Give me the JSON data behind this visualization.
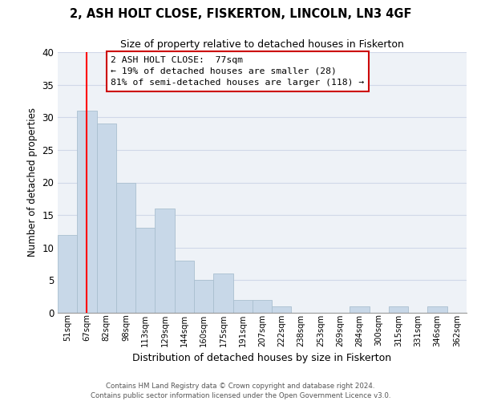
{
  "title": "2, ASH HOLT CLOSE, FISKERTON, LINCOLN, LN3 4GF",
  "subtitle": "Size of property relative to detached houses in Fiskerton",
  "xlabel": "Distribution of detached houses by size in Fiskerton",
  "ylabel": "Number of detached properties",
  "bar_labels": [
    "51sqm",
    "67sqm",
    "82sqm",
    "98sqm",
    "113sqm",
    "129sqm",
    "144sqm",
    "160sqm",
    "175sqm",
    "191sqm",
    "207sqm",
    "222sqm",
    "238sqm",
    "253sqm",
    "269sqm",
    "284sqm",
    "300sqm",
    "315sqm",
    "331sqm",
    "346sqm",
    "362sqm"
  ],
  "bar_heights": [
    12,
    31,
    29,
    20,
    13,
    16,
    8,
    5,
    6,
    2,
    2,
    1,
    0,
    0,
    0,
    1,
    0,
    1,
    0,
    1,
    0
  ],
  "bar_color": "#c8d8e8",
  "bar_edge_color": "#aabfcf",
  "grid_color": "#d0d8e8",
  "background_color": "#eef2f7",
  "red_line_x": 1.5,
  "ylim": [
    0,
    40
  ],
  "yticks": [
    0,
    5,
    10,
    15,
    20,
    25,
    30,
    35,
    40
  ],
  "annotation_line1": "2 ASH HOLT CLOSE:  77sqm",
  "annotation_line2": "← 19% of detached houses are smaller (28)",
  "annotation_line3": "81% of semi-detached houses are larger (118) →",
  "footer_line1": "Contains HM Land Registry data © Crown copyright and database right 2024.",
  "footer_line2": "Contains public sector information licensed under the Open Government Licence v3.0."
}
